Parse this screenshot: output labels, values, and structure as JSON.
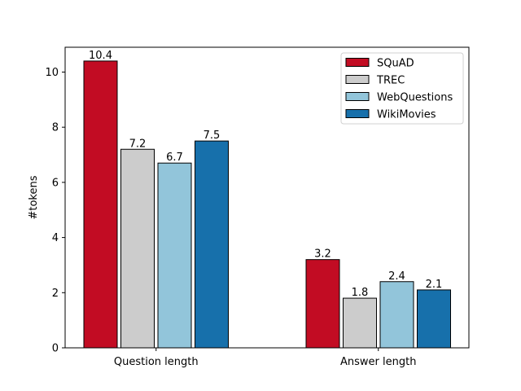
{
  "chart_data": {
    "type": "bar",
    "categories": [
      "Question length",
      "Answer length"
    ],
    "series": [
      {
        "name": "SQuAD",
        "values": [
          10.4,
          3.2
        ],
        "color": "#c20c23"
      },
      {
        "name": "TREC",
        "values": [
          7.2,
          1.8
        ],
        "color": "#cccccc"
      },
      {
        "name": "WebQuestions",
        "values": [
          6.7,
          2.4
        ],
        "color": "#92c5da"
      },
      {
        "name": "WikiMovies",
        "values": [
          7.5,
          2.1
        ],
        "color": "#1770ab"
      }
    ],
    "title": "",
    "xlabel": "",
    "ylabel": "#tokens",
    "ylim": [
      0,
      10.9
    ],
    "yticks": [
      0,
      2,
      4,
      6,
      8,
      10
    ],
    "grid": false,
    "legend_position": "top-right"
  }
}
